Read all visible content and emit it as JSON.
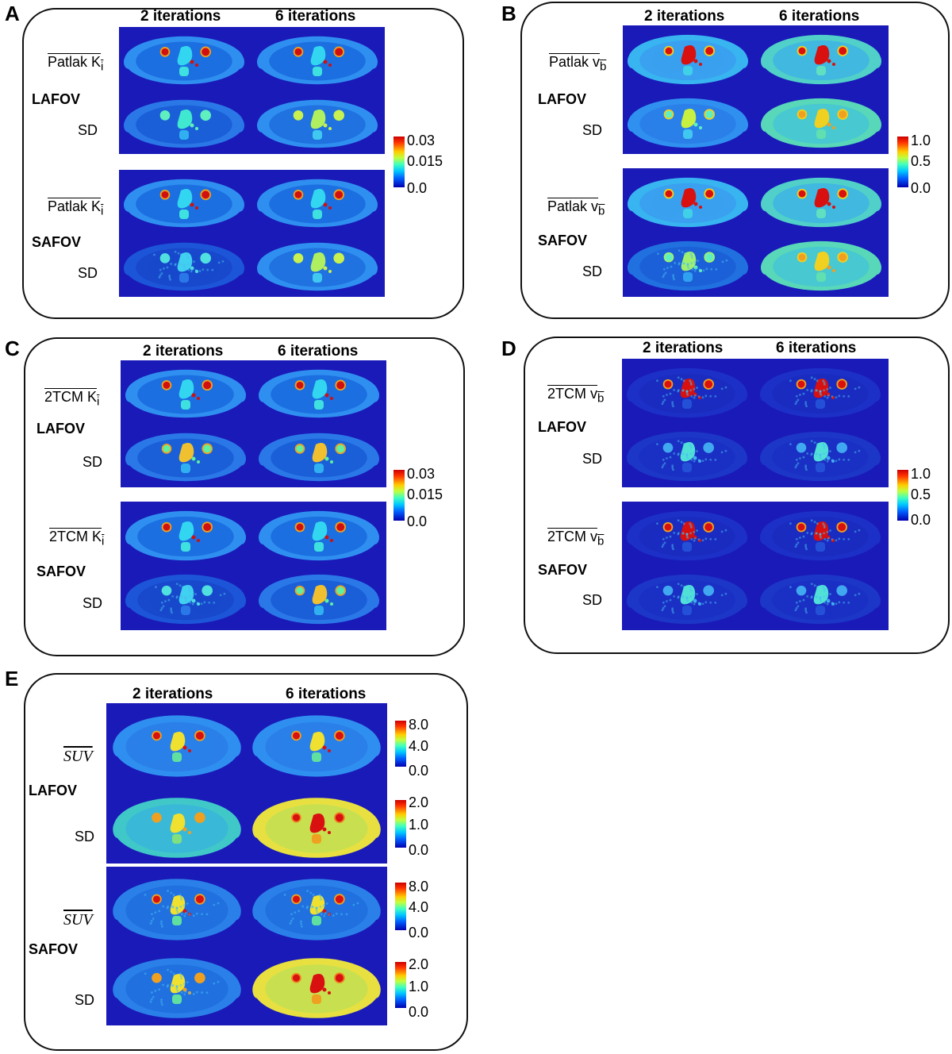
{
  "panels": [
    {
      "letter": "A",
      "col_heads": [
        "2 iterations",
        "6 iterations"
      ],
      "blocks": [
        {
          "row_label": "Patlak K",
          "row_sub": "i",
          "overline": true,
          "group": "LAFOV",
          "sd": "SD"
        },
        {
          "row_label": "Patlak K",
          "row_sub": "i",
          "overline": true,
          "group": "SAFOV",
          "sd": "SD"
        }
      ],
      "colorbars": [
        {
          "ticks": [
            "0.03",
            "0.015",
            "0.0"
          ]
        }
      ]
    },
    {
      "letter": "B",
      "col_heads": [
        "2 iterations",
        "6 iterations"
      ],
      "blocks": [
        {
          "row_label": "Patlak v",
          "row_sub": "b",
          "overline": true,
          "group": "LAFOV",
          "sd": "SD"
        },
        {
          "row_label": "Patlak v",
          "row_sub": "b",
          "overline": true,
          "group": "SAFOV",
          "sd": "SD"
        }
      ],
      "colorbars": [
        {
          "ticks": [
            "1.0",
            "0.5",
            "0.0"
          ]
        }
      ]
    },
    {
      "letter": "C",
      "col_heads": [
        "2 iterations",
        "6 iterations"
      ],
      "blocks": [
        {
          "row_label": "2TCM K",
          "row_sub": "i",
          "overline": true,
          "group": "LAFOV",
          "sd": "SD"
        },
        {
          "row_label": "2TCM K",
          "row_sub": "i",
          "overline": true,
          "group": "SAFOV",
          "sd": "SD"
        }
      ],
      "colorbars": [
        {
          "ticks": [
            "0.03",
            "0.015",
            "0.0"
          ]
        }
      ]
    },
    {
      "letter": "D",
      "col_heads": [
        "2 iterations",
        "6 iterations"
      ],
      "blocks": [
        {
          "row_label": "2TCM v",
          "row_sub": "b",
          "overline": true,
          "group": "LAFOV",
          "sd": "SD"
        },
        {
          "row_label": "2TCM v",
          "row_sub": "b",
          "overline": true,
          "group": "SAFOV",
          "sd": "SD"
        }
      ],
      "colorbars": [
        {
          "ticks": [
            "1.0",
            "0.5",
            "0.0"
          ]
        }
      ]
    },
    {
      "letter": "E",
      "col_heads": [
        "2 iterations",
        "6 iterations"
      ],
      "blocks": [
        {
          "row_label": "SUV",
          "row_sub": "",
          "overline": true,
          "group": "LAFOV",
          "sd": "SD"
        },
        {
          "row_label": "SUV",
          "row_sub": "",
          "overline": true,
          "group": "SAFOV",
          "sd": "SD"
        }
      ],
      "colorbars": [
        {
          "ticks": [
            "8.0",
            "4.0",
            "0.0"
          ]
        },
        {
          "ticks": [
            "2.0",
            "1.0",
            "0.0"
          ]
        },
        {
          "ticks": [
            "8.0",
            "4.0",
            "0.0"
          ]
        },
        {
          "ticks": [
            "2.0",
            "1.0",
            "0.0"
          ]
        }
      ]
    }
  ],
  "colors": {
    "background_blue": "#1a1ab8",
    "body_cyan": "#2aa8f0",
    "hot_red": "#d81010",
    "yellow": "#f2e02a"
  }
}
